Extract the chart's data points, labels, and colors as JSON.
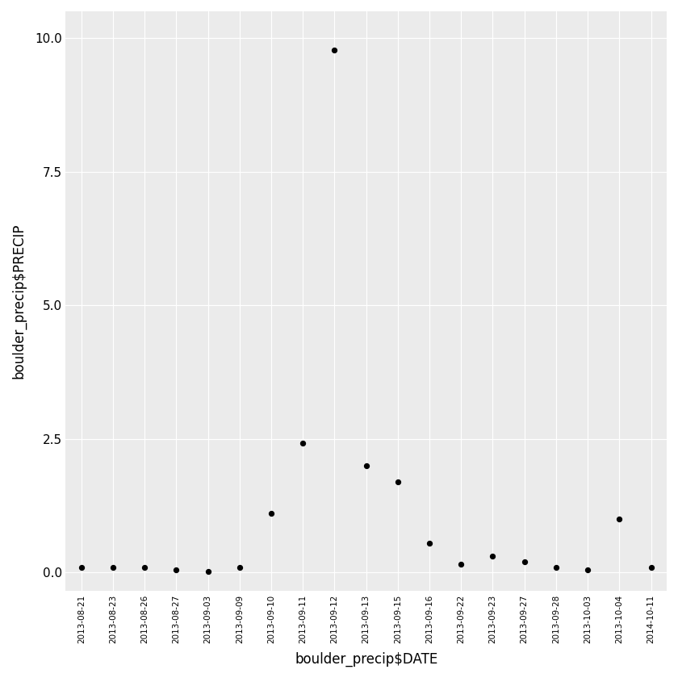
{
  "dates": [
    "2013-08-21",
    "2013-08-23",
    "2013-08-26",
    "2013-08-27",
    "2013-09-03",
    "2013-09-09",
    "2013-09-10",
    "2013-09-11",
    "2013-09-12",
    "2013-09-13",
    "2013-09-15",
    "2013-09-16",
    "2013-09-22",
    "2013-09-23",
    "2013-09-27",
    "2013-09-28",
    "2013-10-03",
    "2013-10-04",
    "2014-10-11"
  ],
  "precip": [
    0.1,
    0.1,
    0.1,
    0.05,
    0.01,
    0.1,
    1.1,
    2.42,
    9.78,
    2.0,
    1.7,
    0.55,
    0.15,
    0.3,
    0.2,
    0.1,
    0.05,
    1.0,
    0.1
  ],
  "x_tick_labels": [
    "2013-08-21",
    "2013-08-23",
    "2013-08-26",
    "2013-08-27",
    "2013-09-03",
    "2013-09-09",
    "2013-09-10",
    "2013-09-11",
    "2013-09-12",
    "2013-09-13",
    "2013-09-15",
    "2013-09-16",
    "2013-09-22",
    "2013-09-23",
    "2013-09-27",
    "2013-09-28",
    "2013-10-03",
    "2013-10-04",
    "2014-10-11"
  ],
  "ylabel": "boulder_precip$PRECIP",
  "xlabel": "boulder_precip$DATE",
  "bg_color": "#EBEBEB",
  "point_color": "#000000",
  "point_size": 18,
  "ylim": [
    -0.35,
    10.5
  ],
  "yticks": [
    0.0,
    2.5,
    5.0,
    7.5,
    10.0
  ],
  "grid_color": "#FFFFFF",
  "grid_linewidth": 0.8
}
